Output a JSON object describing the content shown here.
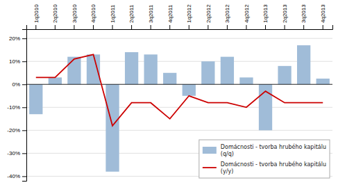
{
  "chart_data": {
    "type": "bar",
    "categories": [
      "1q2010",
      "2q2010",
      "3q2010",
      "4q2010",
      "1q2011",
      "2q2011",
      "3q2011",
      "4q2011",
      "1q2012",
      "2q2012",
      "3q2012",
      "4q2012",
      "1q2013",
      "2q2013",
      "3q2013",
      "4q2013"
    ],
    "series": [
      {
        "name": "Domácnosti - tvorba hrubého kapitálu\n(q/q)",
        "type": "bar",
        "color": "#a0bcd8",
        "values": [
          -13,
          3,
          12,
          13,
          -38,
          14,
          13,
          5,
          -5,
          10,
          12,
          3,
          -20,
          8,
          17,
          2.5
        ]
      },
      {
        "name": "Domácnosti - tvorba hrubého kapitálu\n(y/y)",
        "type": "line",
        "color": "#cc0000",
        "values": [
          3,
          3,
          11,
          13,
          -18,
          -8,
          -8,
          -15,
          -5,
          -8,
          -8,
          -10,
          -3,
          -8,
          -8,
          -8
        ]
      }
    ],
    "ylim": [
      -42,
      24
    ],
    "yticks": [
      {
        "value": -40,
        "label": "-40%"
      },
      {
        "value": -30,
        "label": "-30%"
      },
      {
        "value": -20,
        "label": "-20%"
      },
      {
        "value": -10,
        "label": "-10%"
      },
      {
        "value": 0,
        "label": "0%"
      },
      {
        "value": 10,
        "label": "10%"
      },
      {
        "value": 20,
        "label": "20%"
      }
    ],
    "grid": true,
    "legend": "lower right"
  }
}
